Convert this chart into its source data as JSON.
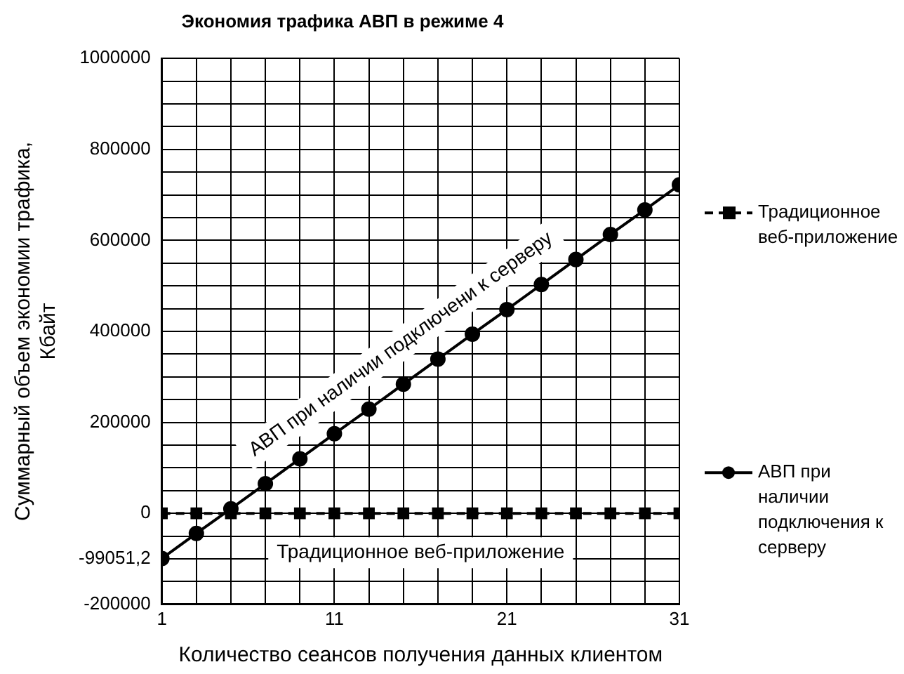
{
  "chart_data": {
    "type": "line",
    "title": "Экономия трафика АВП в режиме 4",
    "xlabel": "Количество сеансов получения данных клиентом",
    "ylabel": "Суммарный объем экономии трафика, Кбайт",
    "x": [
      1,
      3,
      5,
      7,
      9,
      11,
      13,
      15,
      17,
      19,
      21,
      23,
      25,
      27,
      29,
      31
    ],
    "series": [
      {
        "name": "Традиционное веб-приложение",
        "color": "#000000",
        "marker": "square",
        "line_style": "dashed",
        "values": [
          0,
          0,
          0,
          0,
          0,
          0,
          0,
          0,
          0,
          0,
          0,
          0,
          0,
          0,
          0,
          0
        ]
      },
      {
        "name": "АВП при наличии подключения к серверу",
        "color": "#000000",
        "marker": "circle",
        "line_style": "solid",
        "values": [
          -99051.2,
          -44000,
          10000,
          65000,
          120000,
          175000,
          229000,
          284000,
          339000,
          394000,
          448000,
          503000,
          558000,
          613000,
          667000,
          722000
        ]
      }
    ],
    "xlim": [
      1,
      31
    ],
    "xticks": [
      1,
      {
        "value": 3,
        "label": null
      },
      {
        "value": 5,
        "label": null
      },
      {
        "value": 7,
        "label": null
      },
      {
        "value": 9,
        "label": null
      },
      11,
      {
        "value": 13,
        "label": null
      },
      {
        "value": 15,
        "label": null
      },
      {
        "value": 17,
        "label": null
      },
      {
        "value": 19,
        "label": null
      },
      21,
      {
        "value": 23,
        "label": null
      },
      {
        "value": 25,
        "label": null
      },
      {
        "value": 27,
        "label": null
      },
      {
        "value": 29,
        "label": null
      },
      31
    ],
    "ylim": [
      -200000,
      1000000
    ],
    "yticks": [
      -200000,
      {
        "value": -150000,
        "label": null
      },
      {
        "value": -100000,
        "label": null
      },
      {
        "value": -99051.2,
        "label": "-99051,2"
      },
      {
        "value": -50000,
        "label": null
      },
      0,
      {
        "value": 50000,
        "label": null
      },
      {
        "value": 100000,
        "label": null
      },
      {
        "value": 150000,
        "label": null
      },
      200000,
      {
        "value": 250000,
        "label": null
      },
      {
        "value": 300000,
        "label": null
      },
      {
        "value": 350000,
        "label": null
      },
      400000,
      {
        "value": 450000,
        "label": null
      },
      {
        "value": 500000,
        "label": null
      },
      {
        "value": 550000,
        "label": null
      },
      600000,
      {
        "value": 650000,
        "label": null
      },
      {
        "value": 700000,
        "label": null
      },
      {
        "value": 750000,
        "label": null
      },
      800000,
      {
        "value": 850000,
        "label": null
      },
      {
        "value": 900000,
        "label": null
      },
      {
        "value": 950000,
        "label": null
      },
      1000000
    ],
    "grid": true,
    "legend": "right",
    "annotations": [
      "АВП при наличии подключени к серверу",
      "Традиционное веб-приложение"
    ]
  }
}
